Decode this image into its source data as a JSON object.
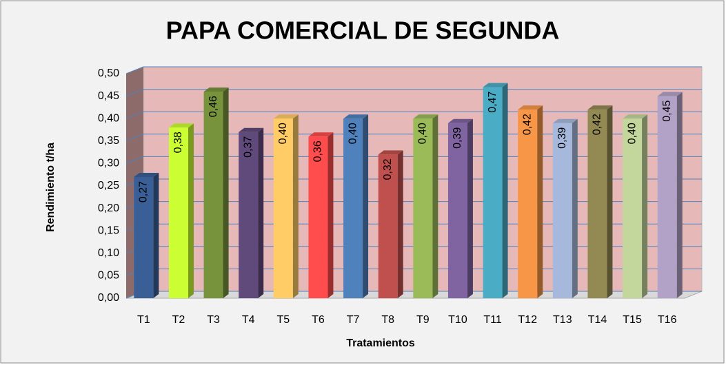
{
  "chart_data": {
    "type": "bar3d",
    "title": "PAPA COMERCIAL DE SEGUNDA",
    "ylabel": "Rendimiento t/ha",
    "xlabel": "Tratamientos",
    "categories": [
      "T1",
      "T2",
      "T3",
      "T4",
      "T5",
      "T6",
      "T7",
      "T8",
      "T9",
      "T10",
      "T11",
      "T12",
      "T13",
      "T14",
      "T15",
      "T16"
    ],
    "values": [
      0.27,
      0.38,
      0.46,
      0.37,
      0.4,
      0.36,
      0.4,
      0.32,
      0.4,
      0.39,
      0.47,
      0.42,
      0.39,
      0.42,
      0.4,
      0.45
    ],
    "value_labels": [
      "0,27",
      "0,38",
      "0,46",
      "0,37",
      "0,40",
      "0,36",
      "0,40",
      "0,32",
      "0,40",
      "0,39",
      "0,47",
      "0,42",
      "0,39",
      "0,42",
      "0,40",
      "0,45"
    ],
    "colors": [
      "#3a5f96",
      "#ccff33",
      "#77933c",
      "#604a7b",
      "#ffcc66",
      "#ff4d4d",
      "#4f81bd",
      "#c0504d",
      "#9bbb59",
      "#8064a2",
      "#4bacc6",
      "#f79646",
      "#a6b9dc",
      "#938953",
      "#c3d69b",
      "#b3a2c7"
    ],
    "ylim": [
      0,
      0.5
    ],
    "yticks": [
      {
        "value": 0,
        "label": "0,00"
      },
      {
        "value": 0.05,
        "label": "0,05"
      },
      {
        "value": 0.1,
        "label": "0,10"
      },
      {
        "value": 0.15,
        "label": "0,15"
      },
      {
        "value": 0.2,
        "label": "0,20"
      },
      {
        "value": 0.25,
        "label": "0,25"
      },
      {
        "value": 0.3,
        "label": "0,30"
      },
      {
        "value": 0.35,
        "label": "0,35"
      },
      {
        "value": 0.4,
        "label": "0,40"
      },
      {
        "value": 0.45,
        "label": "0,45"
      },
      {
        "value": 0.5,
        "label": "0,50"
      }
    ],
    "grid": true
  }
}
